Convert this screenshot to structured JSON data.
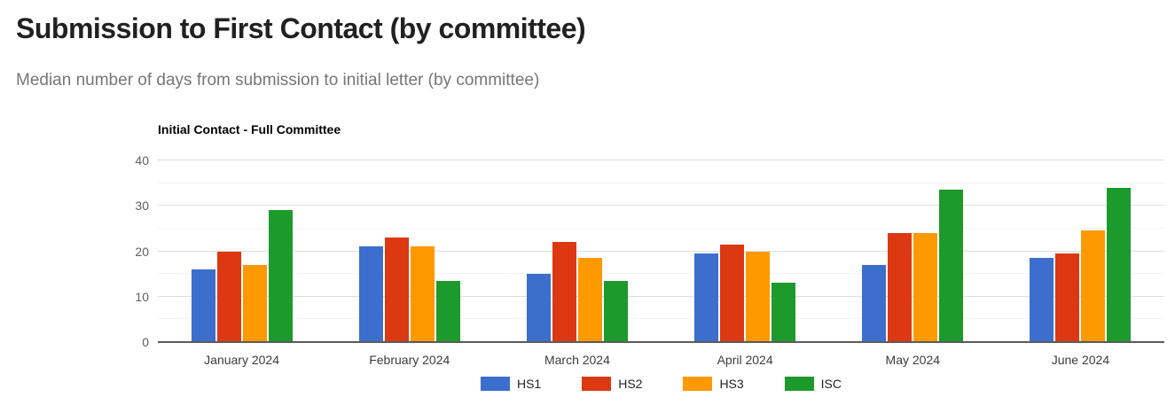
{
  "page": {
    "title": "Submission to First Contact (by committee)",
    "subtitle": "Median number of days from submission to initial letter (by committee)"
  },
  "chart_data": {
    "type": "bar",
    "title": "Initial Contact - Full Committee",
    "categories": [
      "January 2024",
      "February 2024",
      "March 2024",
      "April 2024",
      "May 2024",
      "June 2024"
    ],
    "series": [
      {
        "name": "HS1",
        "color": "#3c6ecd",
        "values": [
          16,
          21,
          15,
          19.5,
          17,
          18.5
        ]
      },
      {
        "name": "HS2",
        "color": "#dc3912",
        "values": [
          20,
          23,
          22,
          21.5,
          24,
          19.5
        ]
      },
      {
        "name": "HS3",
        "color": "#ff9900",
        "values": [
          17,
          21,
          18.5,
          20,
          24,
          24.5
        ]
      },
      {
        "name": "ISC",
        "color": "#1d9a2c",
        "values": [
          29,
          13.5,
          13.5,
          13,
          33.5,
          34
        ]
      }
    ],
    "ylabel": "",
    "xlabel": "",
    "ylim": [
      0,
      40
    ],
    "yticks": [
      0,
      10,
      20,
      30,
      40
    ],
    "minor_ticks": [
      5,
      15,
      25,
      35
    ],
    "grid": true,
    "legend_position": "bottom",
    "colors": {
      "axis_text": "#616161",
      "category_text": "#3c3c3c",
      "baseline": "#5b5b5b",
      "major_grid": "#dedede",
      "minor_grid": "#f2f2f2"
    }
  }
}
